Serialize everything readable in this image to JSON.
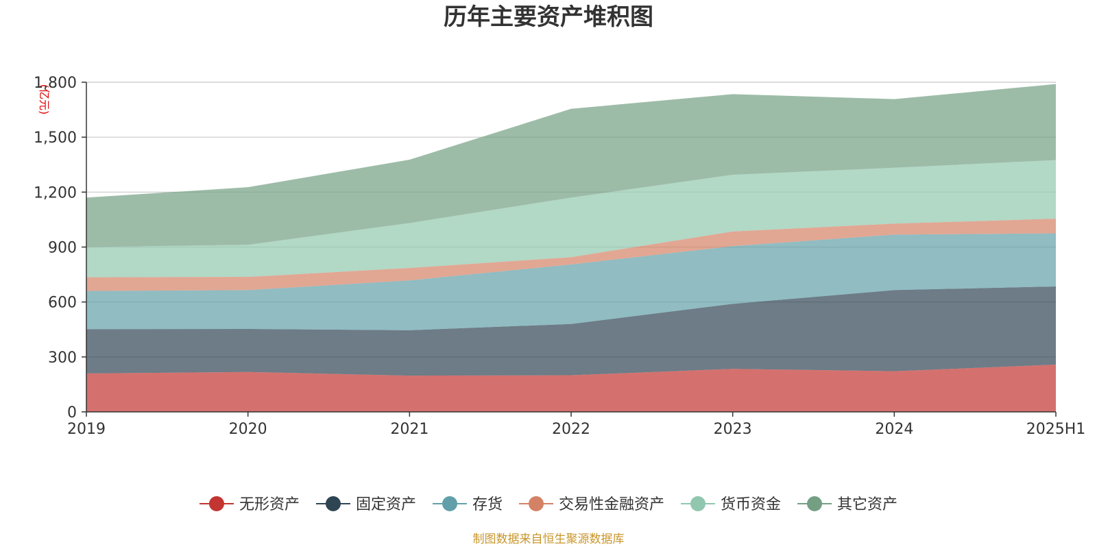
{
  "chart_data": {
    "type": "area",
    "title": "历年主要资产堆积图",
    "unit_label": "(亿元)",
    "x": [
      "2019",
      "2020",
      "2021",
      "2022",
      "2023",
      "2024",
      "2025H1"
    ],
    "ylim": [
      0,
      1800
    ],
    "yticks": [
      0,
      300,
      600,
      900,
      1200,
      1500,
      1800
    ],
    "ytick_labels": [
      "0",
      "300",
      "600",
      "900",
      "1,200",
      "1,500",
      "1,800"
    ],
    "stacked": true,
    "grid": true,
    "legend_position": "bottom",
    "series": [
      {
        "name": "无形资产",
        "color": "#c23531",
        "values": [
          210,
          218,
          198,
          200,
          235,
          222,
          258
        ]
      },
      {
        "name": "固定资产",
        "color": "#2f4554",
        "values": [
          242,
          235,
          248,
          280,
          355,
          443,
          427
        ]
      },
      {
        "name": "存货",
        "color": "#61a0a8",
        "values": [
          208,
          212,
          272,
          325,
          315,
          303,
          290
        ]
      },
      {
        "name": "交易性金融资产",
        "color": "#d48265",
        "values": [
          75,
          72,
          68,
          40,
          80,
          60,
          80
        ]
      },
      {
        "name": "货币资金",
        "color": "#91c7ae",
        "values": [
          165,
          175,
          245,
          325,
          310,
          305,
          320
        ]
      },
      {
        "name": "其它资产",
        "color": "#749f83",
        "values": [
          270,
          315,
          346,
          485,
          440,
          375,
          415
        ]
      }
    ],
    "source_note": "制图数据来自恒生聚源数据库"
  }
}
